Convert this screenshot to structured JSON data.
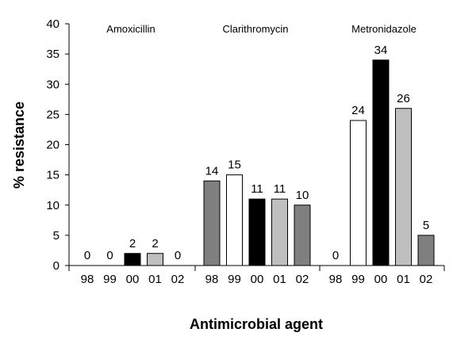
{
  "chart_data": {
    "type": "bar",
    "title": "",
    "xlabel": "Antimicrobial agent",
    "ylabel": "% resistance",
    "ylim": [
      0,
      40
    ],
    "yticks": [
      0,
      5,
      10,
      15,
      20,
      25,
      30,
      35,
      40
    ],
    "grid": false,
    "groups": [
      {
        "name": "Amoxicillin",
        "categories": [
          "98",
          "99",
          "00",
          "01",
          "02"
        ],
        "values": [
          0,
          0,
          2,
          2,
          0
        ],
        "labels": [
          "0",
          "0",
          "2",
          "2",
          "0"
        ]
      },
      {
        "name": "Clarithromycin",
        "categories": [
          "98",
          "99",
          "00",
          "01",
          "02"
        ],
        "values": [
          14,
          15,
          11,
          11,
          10
        ],
        "labels": [
          "14",
          "15",
          "11",
          "11",
          "10"
        ]
      },
      {
        "name": "Metronidazole",
        "categories": [
          "98",
          "99",
          "00",
          "01",
          "02"
        ],
        "values": [
          0,
          24,
          34,
          26,
          5
        ],
        "labels": [
          "0",
          "24",
          "34",
          "26",
          "5"
        ]
      }
    ],
    "year_colors": {
      "98": "#7f7f7f",
      "99": "#ffffff",
      "00": "#000000",
      "01": "#bfbfbf",
      "02": "#7f7f7f"
    }
  }
}
